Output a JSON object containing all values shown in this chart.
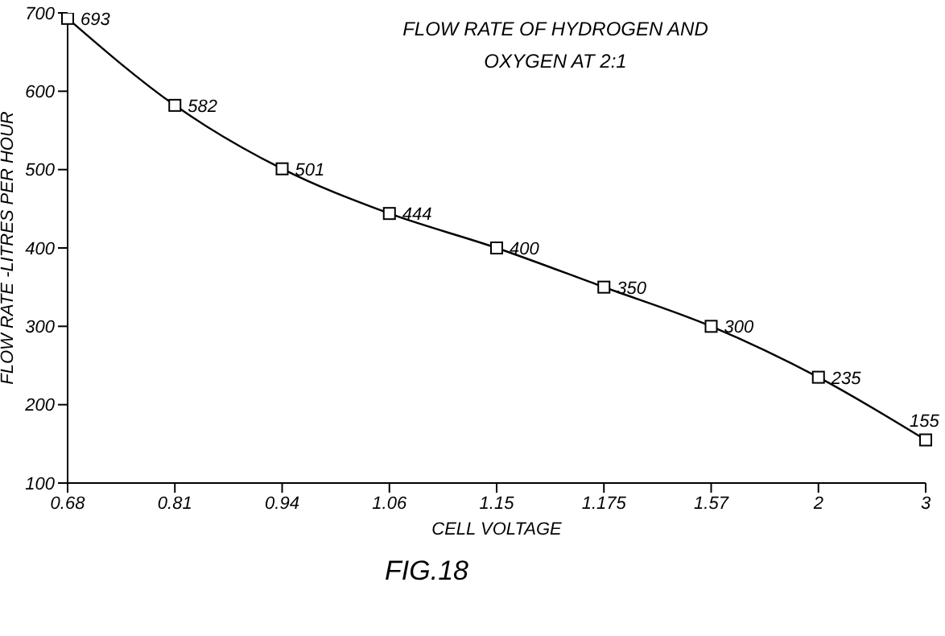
{
  "chart_data": {
    "type": "line",
    "title": "FLOW RATE OF HYDROGEN AND OXYGEN AT 2:1",
    "xlabel": "CELL VOLTAGE",
    "ylabel": "FLOW RATE -LITRES PER HOUR",
    "annotations": [
      "FIG.18"
    ],
    "categories": [
      "0.68",
      "0.81",
      "0.94",
      "1.06",
      "1.15",
      "1.175",
      "1.57",
      "2",
      "3"
    ],
    "series": [
      {
        "color": "#000000",
        "values": [
          693,
          582,
          501,
          444,
          400,
          350,
          300,
          235,
          155
        ]
      }
    ],
    "ylim": [
      100,
      700
    ],
    "yticks": [
      100,
      200,
      300,
      400,
      500,
      600,
      700
    ],
    "grid": false,
    "legend": false,
    "marker": "square",
    "line_style": "solid",
    "data_labels": true
  }
}
